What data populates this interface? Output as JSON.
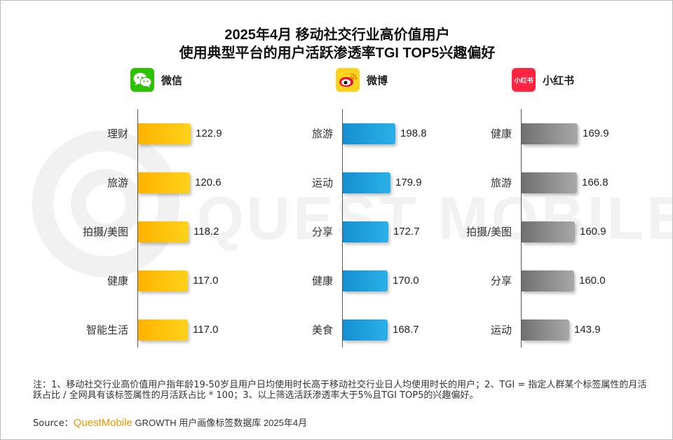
{
  "title_line1": "2025年4月 移动社交行业高价值用户",
  "title_line2": "使用典型平台的用户活跃渗透率TGI TOP5兴趣偏好",
  "watermark": "QUEST MOBILE",
  "platforms": [
    {
      "name": "微信",
      "icon": "wechat-icon",
      "color": "#2dc100"
    },
    {
      "name": "微博",
      "icon": "weibo-icon",
      "color": "#ffd21e"
    },
    {
      "name": "小红书",
      "icon": "xiaohongshu-icon",
      "color": "#ff2442",
      "logo_text": "小红书"
    }
  ],
  "chart_data": [
    {
      "type": "bar",
      "orientation": "horizontal",
      "platform": "微信",
      "bar_color": "#ffc000",
      "categories": [
        "理财",
        "旅游",
        "拍摄/美图",
        "健康",
        "智能生活"
      ],
      "values": [
        122.9,
        120.6,
        118.2,
        117.0,
        117.0
      ],
      "value_labels": [
        "122.9",
        "120.6",
        "118.2",
        "117.0",
        "117.0"
      ]
    },
    {
      "type": "bar",
      "orientation": "horizontal",
      "platform": "微博",
      "bar_color": "#1e9bd7",
      "categories": [
        "旅游",
        "运动",
        "分享",
        "健康",
        "美食"
      ],
      "values": [
        198.8,
        179.9,
        172.7,
        170.0,
        168.7
      ],
      "value_labels": [
        "198.8",
        "179.9",
        "172.7",
        "170.0",
        "168.7"
      ]
    },
    {
      "type": "bar",
      "orientation": "horizontal",
      "platform": "小红书",
      "bar_color": "#8c8c8c",
      "categories": [
        "健康",
        "旅游",
        "拍摄/美图",
        "分享",
        "运动"
      ],
      "values": [
        169.9,
        166.8,
        160.9,
        160.0,
        143.9
      ],
      "value_labels": [
        "169.9",
        "166.8",
        "160.9",
        "160.0",
        "143.9"
      ]
    }
  ],
  "note": "注：1、移动社交行业高价值用户指年龄19-50岁且用户日均使用时长高于移动社交行业日人均使用时长的用户；2、TGI = 指定人群某个标签属性的月活跃占比 / 全网具有该标签属性的月活跃占比 * 100；3、以上筛选活跃渗透率大于5%且TGI TOP5的兴趣偏好。",
  "source": {
    "label": "Source：",
    "brand": "QuestMobile",
    "rest": " GROWTH 用户画像标签数据库 2025年4月"
  }
}
